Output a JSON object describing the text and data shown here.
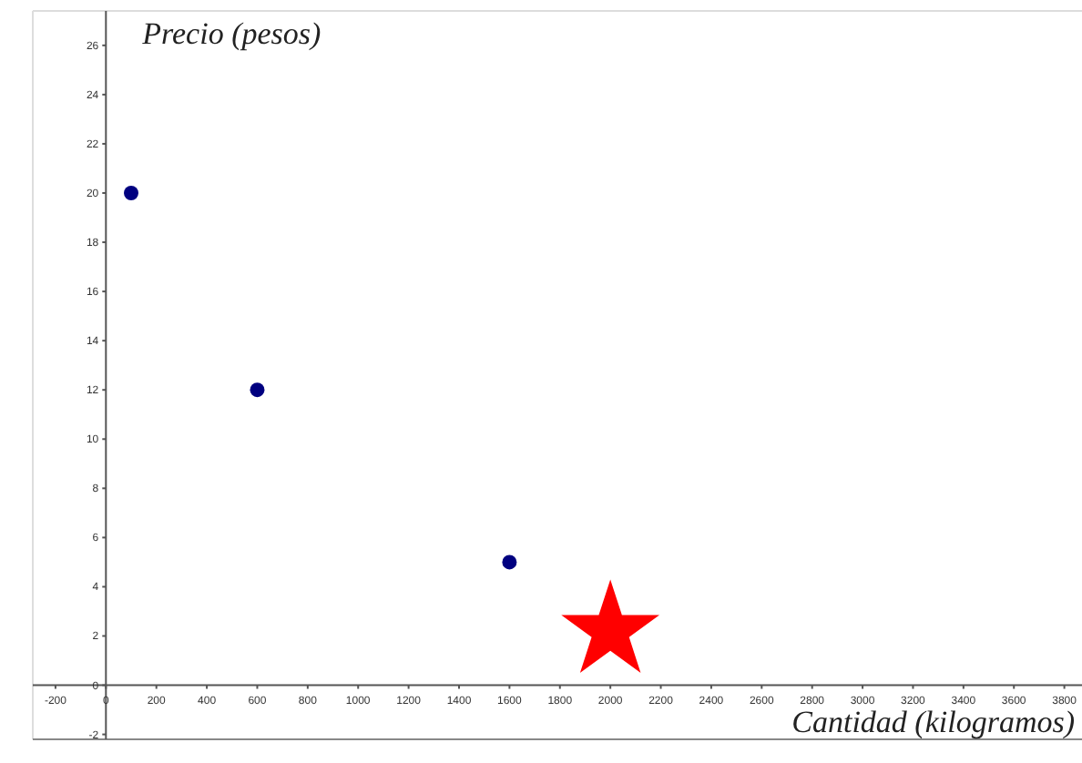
{
  "chart_data": {
    "type": "scatter",
    "xlabel": "Cantidad (kilogramos)",
    "ylabel": "Precio (pesos)",
    "xlim": [
      -290,
      3870
    ],
    "ylim": [
      -2.2,
      27.4
    ],
    "xticks": [
      -200,
      0,
      200,
      400,
      600,
      800,
      1000,
      1200,
      1400,
      1600,
      1800,
      2000,
      2200,
      2400,
      2600,
      2800,
      3000,
      3200,
      3400,
      3600,
      3800
    ],
    "yticks": [
      -2,
      0,
      2,
      4,
      6,
      8,
      10,
      12,
      14,
      16,
      18,
      20,
      22,
      24,
      26
    ],
    "grid": false,
    "series": [
      {
        "color": "#000080",
        "marker": "circle",
        "x": [
          100,
          600,
          1600
        ],
        "values": [
          20,
          12,
          5
        ]
      },
      {
        "color": "#ff0000",
        "marker": "star",
        "x": [
          2000
        ],
        "values": [
          2.2
        ]
      }
    ]
  }
}
